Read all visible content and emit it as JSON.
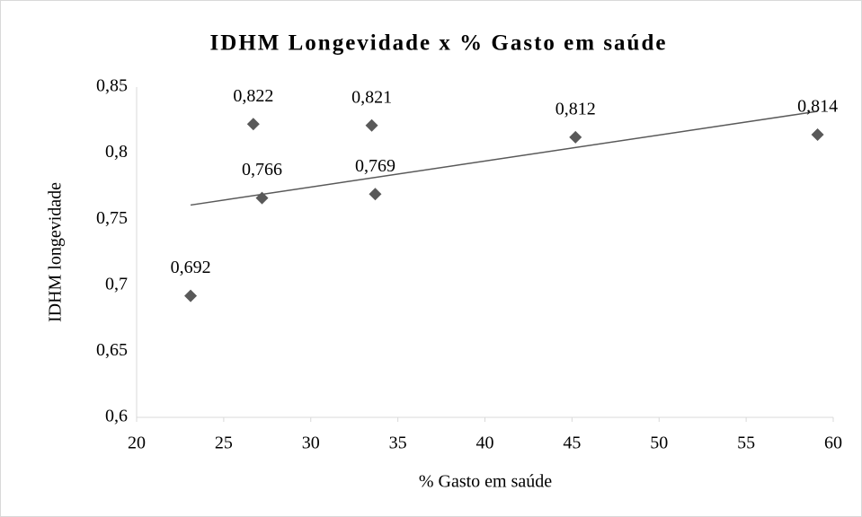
{
  "chart_data": {
    "type": "scatter",
    "title": "IDHM Longevidade x % Gasto em saúde",
    "xlabel": "% Gasto em saúde",
    "ylabel": "IDHM longevidade",
    "series": [
      {
        "color": "#595959",
        "x": [
          23.1,
          26.7,
          27.2,
          33.5,
          33.7,
          45.2,
          59.1
        ],
        "values": [
          0.692,
          0.822,
          0.766,
          0.821,
          0.769,
          0.812,
          0.814
        ],
        "value_labels": [
          "0,692",
          "0,822",
          "0,766",
          "0,821",
          "0,769",
          "0,812",
          "0,814"
        ]
      }
    ],
    "trendline": {
      "type": "linear",
      "color": "#595959"
    },
    "xlim": [
      20,
      60
    ],
    "xticks": [
      20,
      25,
      30,
      35,
      40,
      45,
      50,
      55,
      60
    ],
    "ylim": [
      0.6,
      0.85
    ],
    "yticks": [
      {
        "value": 0.6,
        "label": "0,6"
      },
      {
        "value": 0.65,
        "label": "0,65"
      },
      {
        "value": 0.7,
        "label": "0,7"
      },
      {
        "value": 0.75,
        "label": "0,75"
      },
      {
        "value": 0.8,
        "label": "0,8"
      },
      {
        "value": 0.85,
        "label": "0,85"
      }
    ],
    "grid": false
  }
}
